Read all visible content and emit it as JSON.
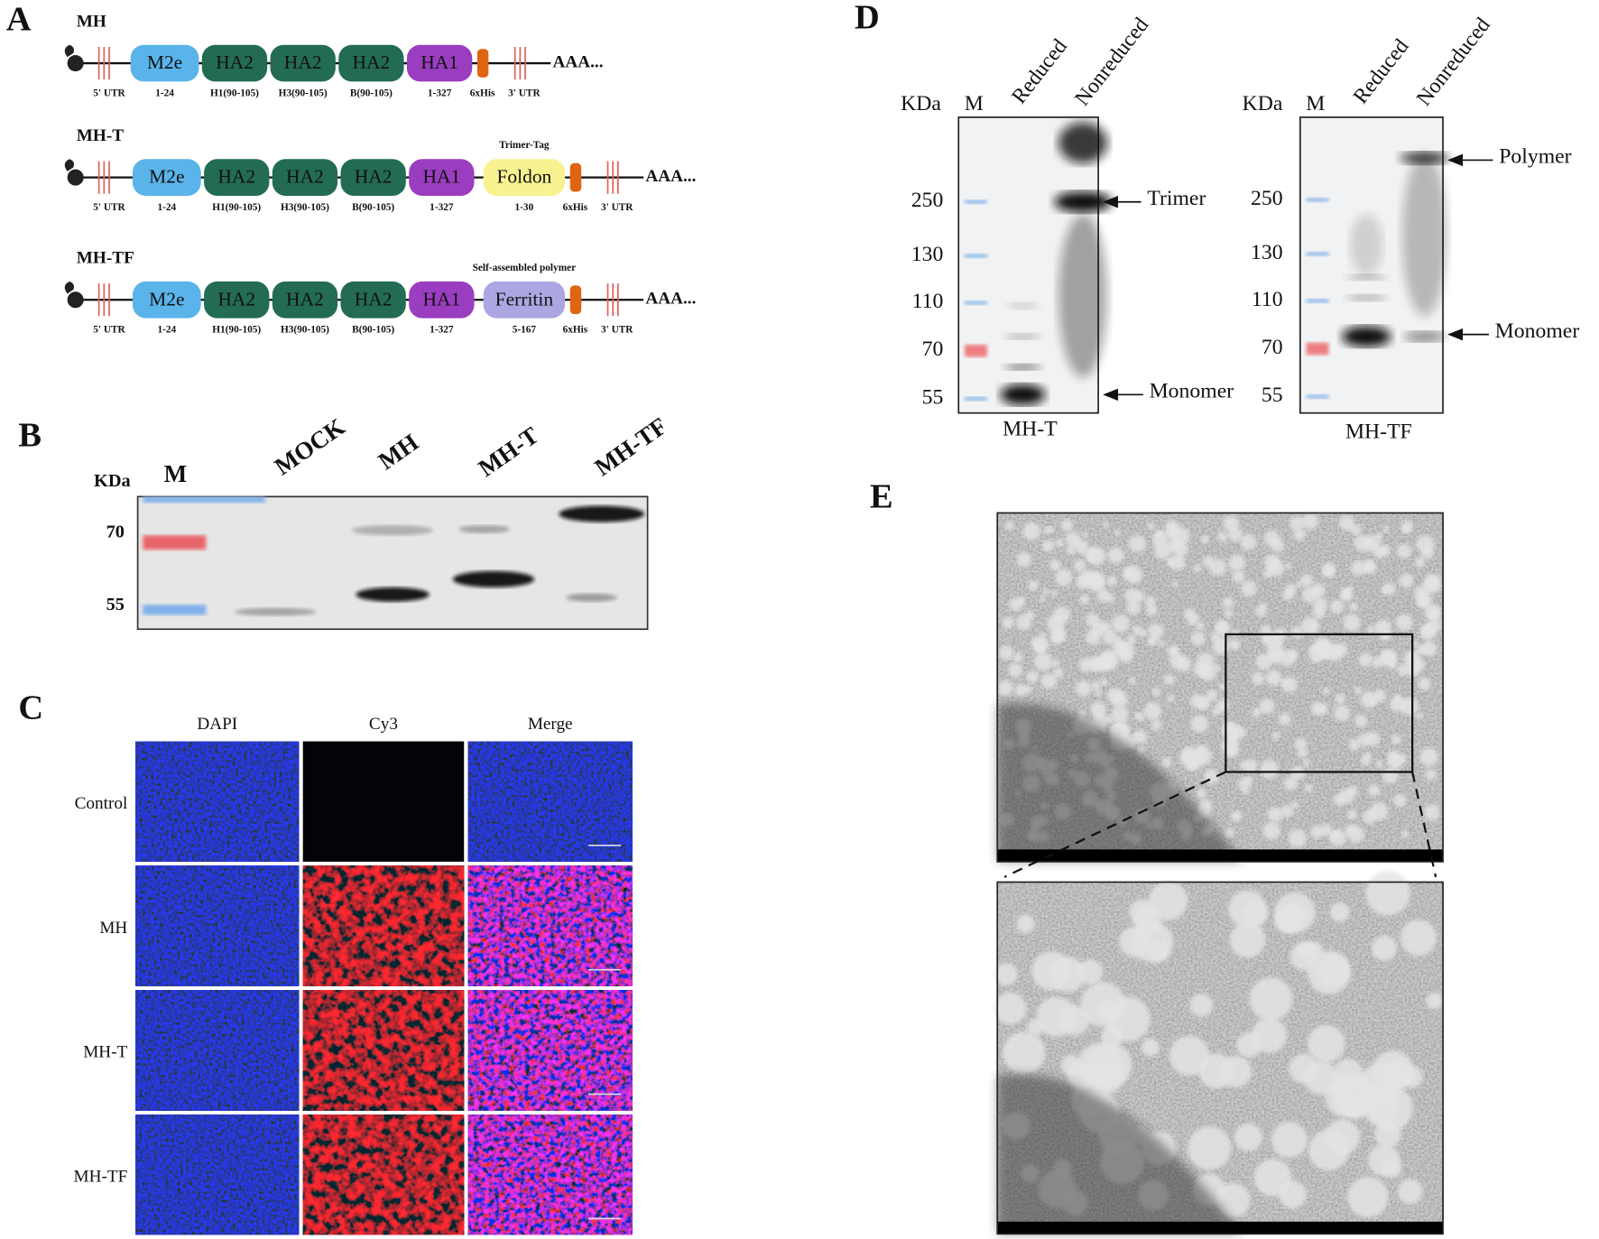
{
  "panel_a": {
    "label": "A",
    "constructs": [
      {
        "name": "MH",
        "domains": [
          {
            "name": "M2e",
            "range": "1-24",
            "color": "#5ab4ea"
          },
          {
            "name": "HA2",
            "range": "H1(90-105)",
            "color": "#236b55"
          },
          {
            "name": "HA2",
            "range": "H3(90-105)",
            "color": "#236b55"
          },
          {
            "name": "HA2",
            "range": "B(90-105)",
            "color": "#236b55"
          },
          {
            "name": "HA1",
            "range": "1-327",
            "color": "#9a3dc0"
          }
        ],
        "utr5": "5' UTR",
        "his": "6xHis",
        "utr3": "3' UTR",
        "tail": "AAA..."
      },
      {
        "name": "MH-T",
        "tag": "Trimer-Tag",
        "domains": [
          {
            "name": "M2e",
            "range": "1-24",
            "color": "#5ab4ea"
          },
          {
            "name": "HA2",
            "range": "H1(90-105)",
            "color": "#236b55"
          },
          {
            "name": "HA2",
            "range": "H3(90-105)",
            "color": "#236b55"
          },
          {
            "name": "HA2",
            "range": "B(90-105)",
            "color": "#236b55"
          },
          {
            "name": "HA1",
            "range": "1-327",
            "color": "#9a3dc0"
          },
          {
            "name": "Foldon",
            "range": "1-30",
            "color": "#f8f290"
          }
        ],
        "utr5": "5' UTR",
        "his": "6xHis",
        "utr3": "3' UTR",
        "tail": "AAA..."
      },
      {
        "name": "MH-TF",
        "tag": "Self-assembled polymer",
        "domains": [
          {
            "name": "M2e",
            "range": "1-24",
            "color": "#5ab4ea"
          },
          {
            "name": "HA2",
            "range": "H1(90-105)",
            "color": "#236b55"
          },
          {
            "name": "HA2",
            "range": "H3(90-105)",
            "color": "#236b55"
          },
          {
            "name": "HA2",
            "range": "B(90-105)",
            "color": "#236b55"
          },
          {
            "name": "HA1",
            "range": "1-327",
            "color": "#9a3dc0"
          },
          {
            "name": "Ferritin",
            "range": "5-167",
            "color": "#aaa7e2"
          }
        ],
        "utr5": "5' UTR",
        "his": "6xHis",
        "utr3": "3' UTR",
        "tail": "AAA..."
      }
    ]
  },
  "panel_b": {
    "label": "B",
    "unit": "KDa",
    "marker": "M",
    "lanes": [
      "MOCK",
      "MH",
      "MH-T",
      "MH-TF"
    ],
    "ladder": [
      70,
      55
    ]
  },
  "panel_c": {
    "label": "C",
    "columns": [
      "DAPI",
      "Cy3",
      "Merge"
    ],
    "rows": [
      "Control",
      "MH",
      "MH-T",
      "MH-TF"
    ]
  },
  "panel_d": {
    "label": "D",
    "blots": [
      {
        "unit": "KDa",
        "marker": "M",
        "lanes": [
          "Reduced",
          "Nonreduced"
        ],
        "ladder": [
          250,
          130,
          110,
          70,
          55
        ],
        "annotations": [
          "Trimer",
          "Monomer"
        ],
        "caption": "MH-T"
      },
      {
        "unit": "KDa",
        "marker": "M",
        "lanes": [
          "Reduced",
          "Nonreduced"
        ],
        "ladder": [
          250,
          130,
          110,
          70,
          55
        ],
        "annotations": [
          "Polymer",
          "Monomer"
        ],
        "caption": "MH-TF"
      }
    ]
  },
  "panel_e": {
    "label": "E"
  }
}
